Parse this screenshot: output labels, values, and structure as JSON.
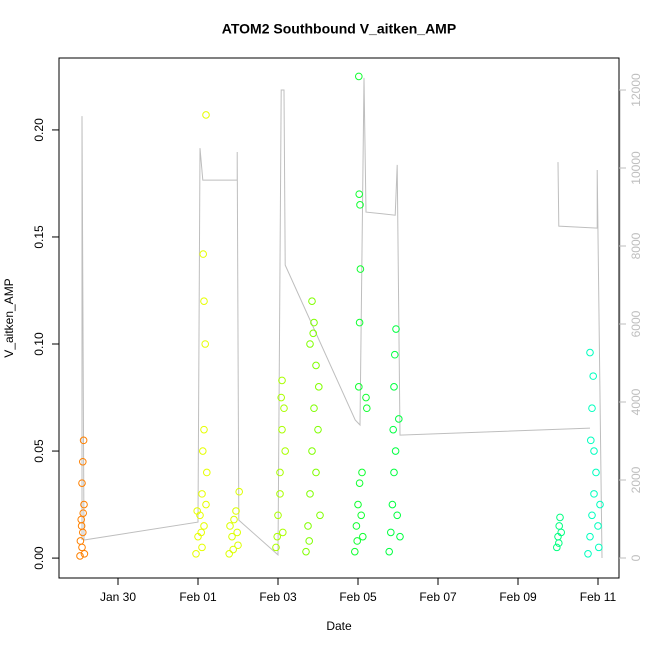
{
  "chart_data": {
    "type": "scatter",
    "title": "ATOM2 Southbound V_aitken_AMP",
    "x_label": "Date",
    "y_label": "V_aitken_AMP",
    "xlim": [
      28.525,
      42.525
    ],
    "xticks": [
      {
        "value": 30,
        "label": "Jan 30"
      },
      {
        "value": 32,
        "label": "Feb 01"
      },
      {
        "value": 34,
        "label": "Feb 03"
      },
      {
        "value": 36,
        "label": "Feb 05"
      },
      {
        "value": 38,
        "label": "Feb 07"
      },
      {
        "value": 40,
        "label": "Feb 09"
      },
      {
        "value": 42,
        "label": "Feb 11"
      }
    ],
    "ylim": [
      -0.0093,
      0.2336
    ],
    "yticks": [
      {
        "value": 0,
        "label": "0.00"
      },
      {
        "value": 0.05,
        "label": "0.05"
      },
      {
        "value": 0.1,
        "label": "0.10"
      },
      {
        "value": 0.15,
        "label": "0.15"
      },
      {
        "value": 0.2,
        "label": "0.20"
      }
    ],
    "y2lim": [
      -513,
      12821
    ],
    "y2ticks": [
      0,
      2000,
      4000,
      6000,
      8000,
      10000,
      12000
    ],
    "series": [
      {
        "color": "#ff8000",
        "x": [
          29.05,
          29.1,
          29.12,
          29.08,
          29.15,
          29.1,
          29.12,
          29.14,
          29.06,
          29.16,
          29.09,
          29.13
        ],
        "values": [
          0.001,
          0.005,
          0.012,
          0.018,
          0.025,
          0.035,
          0.045,
          0.055,
          0.008,
          0.002,
          0.015,
          0.021
        ]
      },
      {
        "color": "#e6ff00",
        "x": [
          31.95,
          32.0,
          32.05,
          32.1,
          32.15,
          32.2,
          32.12,
          32.15,
          32.18,
          32.15,
          32.13,
          32.2,
          32.1,
          32.22,
          31.98,
          32.08
        ],
        "values": [
          0.002,
          0.01,
          0.02,
          0.03,
          0.015,
          0.025,
          0.05,
          0.06,
          0.1,
          0.12,
          0.142,
          0.207,
          0.005,
          0.04,
          0.022,
          0.012
        ]
      },
      {
        "color": "#dcff00",
        "x": [
          32.78,
          32.85,
          32.9,
          32.95,
          33.0,
          33.03,
          32.8,
          32.88,
          32.98
        ],
        "values": [
          0.002,
          0.01,
          0.018,
          0.022,
          0.006,
          0.031,
          0.015,
          0.004,
          0.012
        ]
      },
      {
        "color": "#aaff00",
        "x": [
          33.95,
          34.0,
          34.05,
          34.1,
          34.15,
          34.1,
          34.05,
          34.12,
          34.18,
          33.98,
          34.08
        ],
        "values": [
          0.005,
          0.02,
          0.04,
          0.06,
          0.07,
          0.083,
          0.03,
          0.012,
          0.05,
          0.01,
          0.075
        ]
      },
      {
        "color": "#80ff00",
        "x": [
          34.7,
          34.75,
          34.8,
          34.85,
          34.9,
          34.95,
          35.0,
          35.05,
          34.8,
          34.9,
          34.85,
          34.95,
          35.02,
          34.78,
          34.88
        ],
        "values": [
          0.003,
          0.015,
          0.03,
          0.05,
          0.07,
          0.09,
          0.06,
          0.02,
          0.1,
          0.11,
          0.12,
          0.04,
          0.08,
          0.008,
          0.105
        ]
      },
      {
        "color": "#10ff30",
        "x": [
          35.92,
          35.96,
          36.0,
          36.04,
          36.08,
          36.12,
          36.02,
          36.04,
          36.06,
          36.05,
          36.03,
          36.02,
          36.2,
          36.22,
          36.1,
          35.98
        ],
        "values": [
          0.003,
          0.015,
          0.025,
          0.035,
          0.02,
          0.01,
          0.08,
          0.11,
          0.135,
          0.165,
          0.17,
          0.225,
          0.075,
          0.07,
          0.04,
          0.008
        ]
      },
      {
        "color": "#00ff40",
        "x": [
          36.78,
          36.82,
          36.86,
          36.9,
          36.94,
          36.98,
          37.02,
          36.9,
          36.92,
          36.95,
          36.88,
          37.05
        ],
        "values": [
          0.003,
          0.012,
          0.025,
          0.04,
          0.05,
          0.02,
          0.065,
          0.08,
          0.095,
          0.107,
          0.06,
          0.01
        ]
      },
      {
        "color": "#00ff80",
        "x": [
          40.97,
          41.0,
          41.03,
          41.05,
          41.02,
          41.08
        ],
        "values": [
          0.005,
          0.01,
          0.015,
          0.019,
          0.007,
          0.012
        ]
      },
      {
        "color": "#00ffbf",
        "x": [
          41.75,
          41.8,
          41.85,
          41.9,
          41.95,
          42.0,
          42.05,
          41.82,
          41.85,
          41.88,
          41.8,
          41.9,
          42.02
        ],
        "values": [
          0.002,
          0.01,
          0.02,
          0.03,
          0.04,
          0.015,
          0.025,
          0.055,
          0.07,
          0.085,
          0.096,
          0.05,
          0.005
        ]
      },
      {
        "type": "line",
        "axis": "y2",
        "color": "#bebebe",
        "x": [
          29.1,
          29.1,
          29.15,
          32.0,
          32.05,
          32.12,
          32.98,
          32.98,
          33.02,
          34.0,
          34.08,
          34.15,
          34.18,
          35.93,
          36.05,
          36.15,
          36.2,
          36.93,
          36.98,
          37.05,
          41.8,
          null,
          41.0,
          41.02,
          41.98,
          41.98,
          42.1
        ],
        "values": [
          460,
          11330,
          460,
          920,
          10510,
          9690,
          9690,
          10410,
          970,
          80,
          12000,
          12000,
          7510,
          3540,
          3410,
          12310,
          8870,
          8790,
          10080,
          3150,
          3330,
          null,
          10150,
          8510,
          8460,
          9950,
          0
        ]
      }
    ]
  }
}
